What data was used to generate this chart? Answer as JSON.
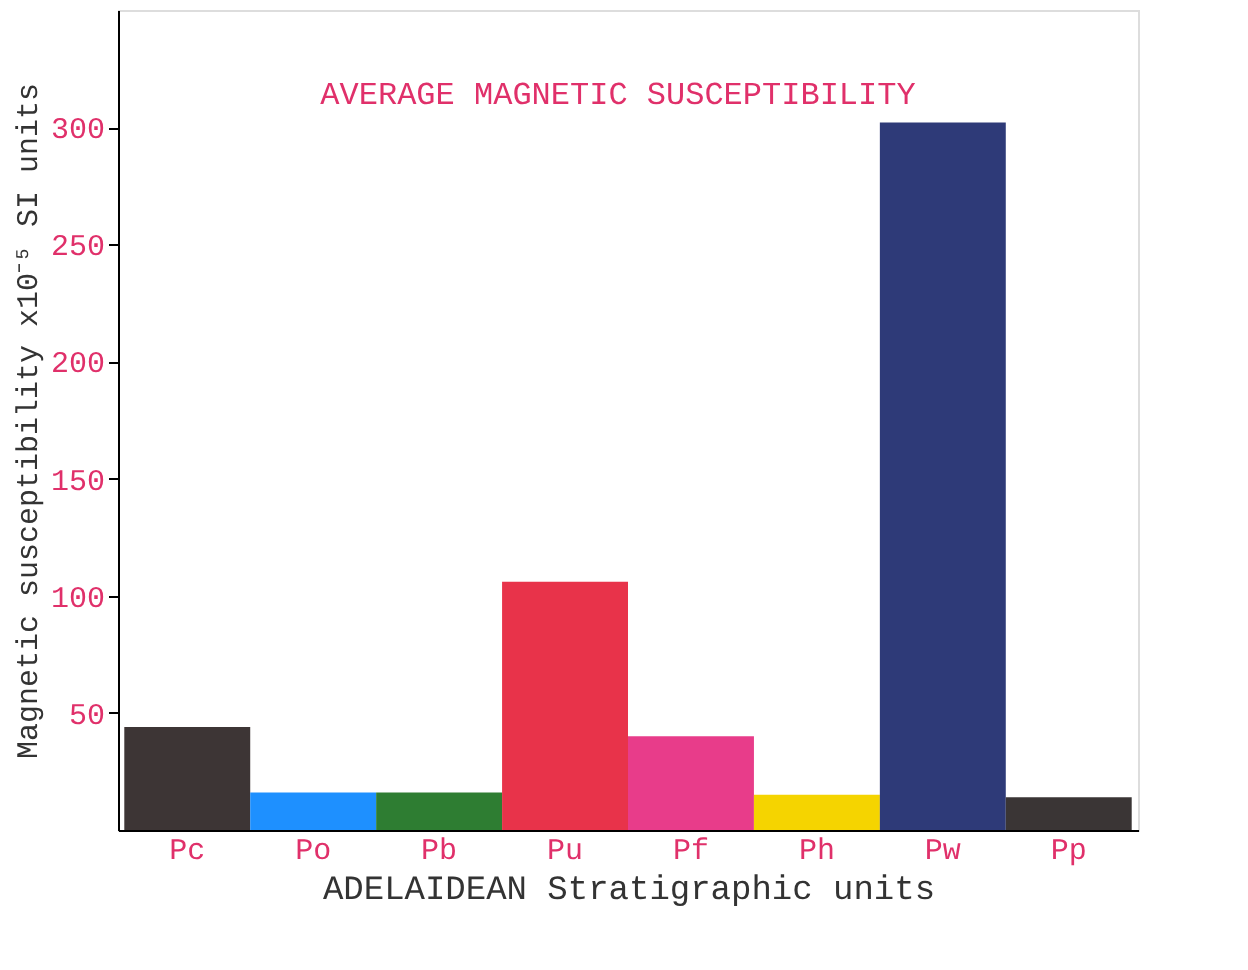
{
  "chart_data": {
    "type": "bar",
    "title": "AVERAGE MAGNETIC SUSCEPTIBILITY",
    "ylabel": "Magnetic susceptibility x10⁻⁵ SI units",
    "xlabel": "ADELAIDEAN   Stratigraphic units",
    "categories": [
      "Pc",
      "Po",
      "Pb",
      "Pu",
      "Pf",
      "Ph",
      "Pw",
      "Pp"
    ],
    "values": [
      44,
      16,
      16,
      106,
      40,
      15,
      302,
      14
    ],
    "colors": [
      "#3d3535",
      "#1e90ff",
      "#2e7d32",
      "#e8334a",
      "#e83c8a",
      "#f5d400",
      "#2e3a78",
      "#3a3535"
    ],
    "ylim": [
      0,
      350
    ],
    "yticks": [
      50,
      100,
      150,
      200,
      250,
      300
    ],
    "grid": false
  }
}
